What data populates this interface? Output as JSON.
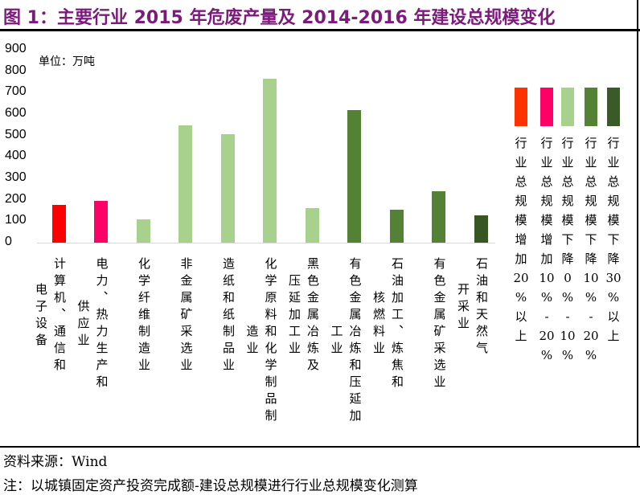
{
  "chart_data": {
    "type": "bar",
    "title": "图 1：主要行业 2015 年危废产量及 2014-2016 年建设总规模变化",
    "unit": "单位：万吨",
    "ylim": [
      0,
      900
    ],
    "yticks": [
      0,
      100,
      200,
      300,
      400,
      500,
      600,
      700,
      800,
      900
    ],
    "categories": [
      {
        "lines": [
          "计算机、通信和",
          "电子设备"
        ],
        "value": 175,
        "group": 0
      },
      {
        "lines": [
          "电力、热力生产和",
          "供应业"
        ],
        "value": 195,
        "group": 1
      },
      {
        "lines": [
          "化学纤维制造业"
        ],
        "value": 108,
        "group": 2
      },
      {
        "lines": [
          "非金属矿采选业"
        ],
        "value": 547,
        "group": 2
      },
      {
        "lines": [
          "造纸和纸制品业"
        ],
        "value": 505,
        "group": 2
      },
      {
        "lines": [
          "化学原料和化学制品制",
          "造业"
        ],
        "value": 764,
        "group": 2
      },
      {
        "lines": [
          "黑色金属冶炼及",
          "压延加工业"
        ],
        "value": 161,
        "group": 2
      },
      {
        "lines": [
          "有色金属冶炼和压延加",
          "工业"
        ],
        "value": 618,
        "group": 3
      },
      {
        "lines": [
          "石油加工、炼焦和",
          "核燃料业"
        ],
        "value": 153,
        "group": 3
      },
      {
        "lines": [
          "有色金属矿采选业"
        ],
        "value": 240,
        "group": 3
      },
      {
        "lines": [
          "石油和天然气",
          "开采业"
        ],
        "value": 127,
        "group": 4
      }
    ],
    "bar_colors": [
      "#ff0000",
      "#ff0066",
      "#a9d18e",
      "#548235",
      "#375623"
    ],
    "legend": [
      {
        "label": "行业总规模增加20%以上",
        "color": "#ff3300"
      },
      {
        "label": "行业总规模增加10%-20%",
        "color": "#ff0066"
      },
      {
        "label": "行业总规模下降0%-10%",
        "color": "#a9d18e"
      },
      {
        "label": "行业总规模下降10%-20%",
        "color": "#548235"
      },
      {
        "label": "行业总规模下降30%以上",
        "color": "#3a5a28"
      }
    ],
    "legend_placement": "right",
    "grid": false
  },
  "footer": {
    "source": "资料来源：Wind",
    "note": "注：以城镇固定资产投资完成额-建设总规模进行行业总规模变化测算"
  }
}
